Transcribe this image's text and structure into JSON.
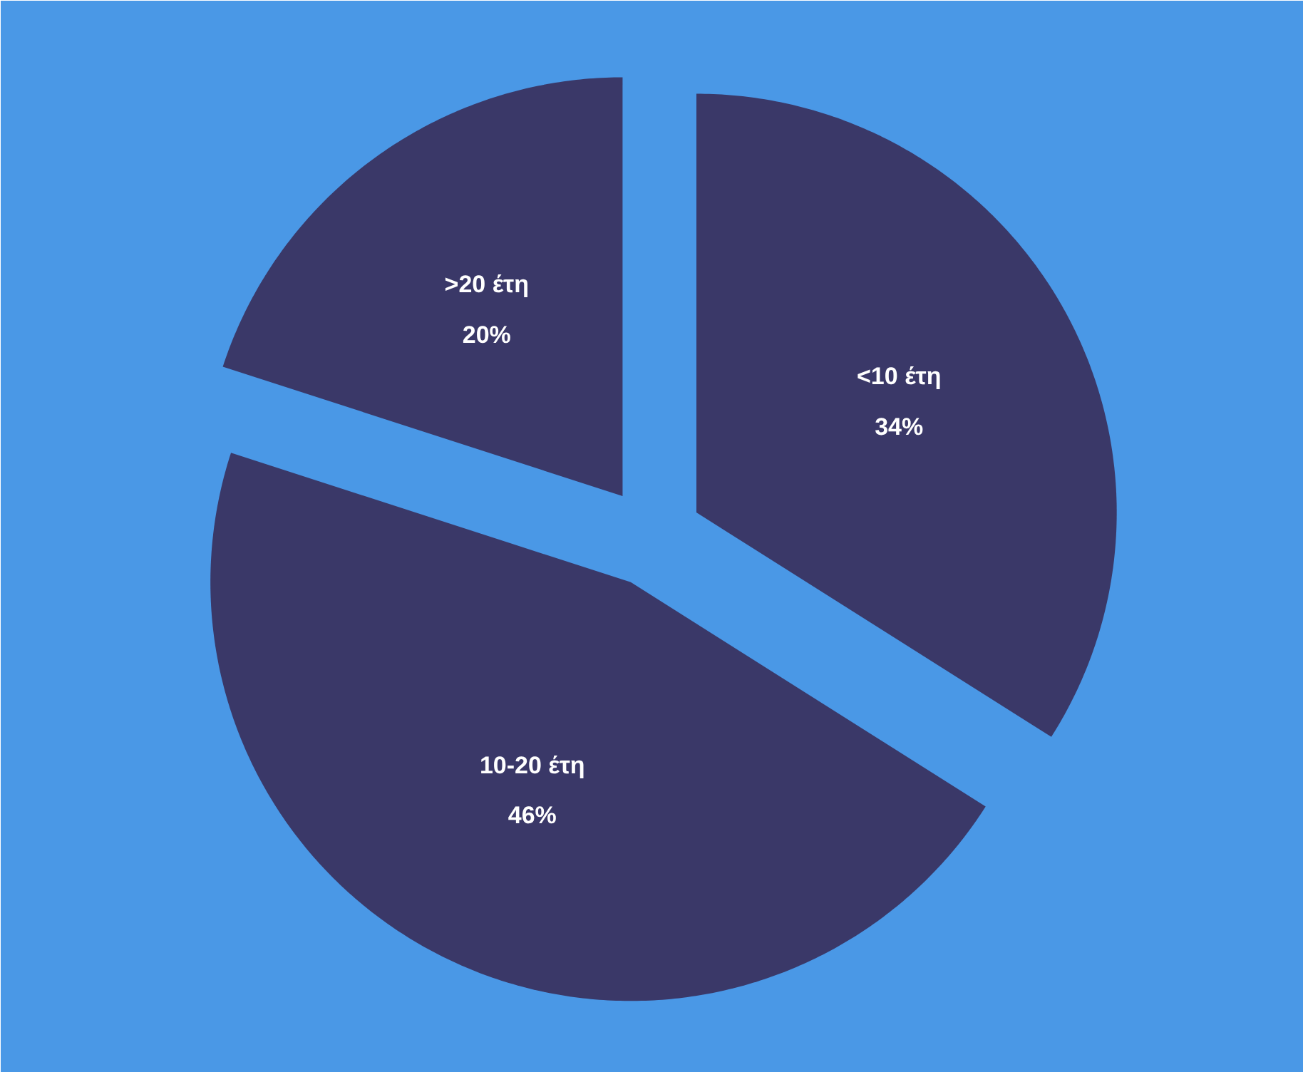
{
  "chart_data": {
    "type": "pie",
    "categories": [
      "<10 έτη",
      "10-20 έτη",
      ">20 έτη"
    ],
    "values": [
      34,
      46,
      20
    ],
    "colors": [
      "#3a3868",
      "#3a3868",
      "#3a3868"
    ],
    "value_labels": [
      "34%",
      "46%",
      "20%"
    ]
  }
}
